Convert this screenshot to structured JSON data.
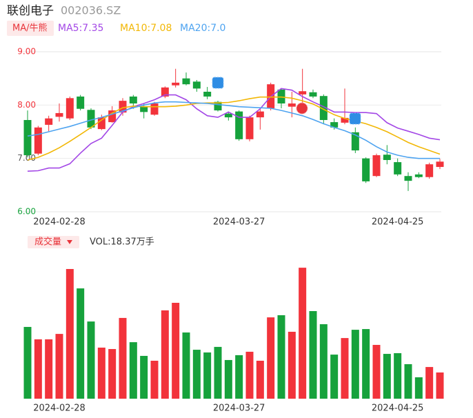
{
  "header": {
    "title": "联创电子",
    "code": "002036.SZ"
  },
  "chart_data": [
    {
      "type": "candlestick",
      "indicator_label": "MA/牛熊",
      "x": [
        null,
        null,
        null,
        "2024-02-28",
        null,
        null,
        null,
        null,
        null,
        null,
        null,
        null,
        null,
        null,
        null,
        null,
        null,
        null,
        null,
        null,
        "2024-03-27",
        null,
        null,
        null,
        null,
        null,
        null,
        null,
        null,
        null,
        null,
        null,
        null,
        null,
        null,
        "2024-04-25",
        null,
        null,
        null,
        null
      ],
      "open": [
        7.72,
        7.09,
        7.63,
        7.78,
        7.75,
        8.16,
        7.91,
        7.55,
        7.68,
        7.86,
        8.16,
        7.97,
        7.82,
        8.16,
        8.37,
        8.5,
        8.44,
        8.25,
        8.06,
        7.84,
        7.88,
        7.36,
        7.77,
        7.94,
        8.29,
        7.97,
        8.2,
        8.24,
        8.17,
        7.68,
        7.67,
        7.49,
        7.0,
        6.67,
        7.07,
        6.93,
        6.67,
        6.7,
        6.65,
        6.84
      ],
      "high": [
        7.9,
        7.61,
        7.8,
        8.03,
        8.16,
        8.19,
        7.94,
        7.82,
        7.98,
        8.13,
        8.19,
        8.03,
        8.06,
        8.35,
        8.68,
        8.61,
        8.47,
        8.34,
        8.08,
        7.88,
        7.9,
        7.8,
        7.93,
        8.42,
        8.31,
        8.25,
        8.68,
        8.29,
        8.2,
        7.75,
        8.31,
        7.58,
        7.02,
        7.09,
        7.25,
        7.0,
        6.74,
        6.74,
        6.92,
        6.99
      ],
      "low": [
        7.02,
        7.06,
        7.51,
        7.69,
        7.72,
        7.9,
        7.55,
        7.53,
        7.67,
        7.8,
        7.93,
        7.75,
        7.8,
        8.13,
        8.33,
        8.37,
        8.25,
        8.11,
        7.88,
        7.71,
        7.33,
        7.32,
        7.54,
        7.9,
        7.94,
        7.77,
        7.9,
        8.13,
        7.64,
        7.54,
        7.64,
        7.1,
        6.54,
        6.65,
        6.89,
        6.67,
        6.39,
        6.63,
        6.62,
        6.8
      ],
      "close": [
        7.06,
        7.58,
        7.75,
        7.85,
        8.13,
        7.93,
        7.58,
        7.77,
        7.9,
        8.08,
        8.03,
        7.87,
        8.03,
        8.33,
        8.42,
        8.39,
        8.31,
        8.16,
        7.9,
        7.77,
        7.36,
        7.77,
        7.88,
        8.39,
        8.03,
        8.03,
        8.26,
        8.16,
        7.72,
        7.58,
        7.76,
        7.15,
        6.57,
        7.06,
        6.97,
        6.7,
        6.58,
        6.65,
        6.89,
        6.94
      ],
      "up_color": "#f2333b",
      "down_color": "#16a23c",
      "ylim": [
        6,
        9
      ],
      "yticks": [
        {
          "value": 6,
          "label": "6.00",
          "color": "#16a23c"
        },
        {
          "value": 7,
          "label": "7.00",
          "color": "#555555"
        },
        {
          "value": 8,
          "label": "8.00",
          "color": "#f2333b"
        },
        {
          "value": 9,
          "label": "9.00",
          "color": "#f2333b"
        }
      ],
      "grid": true,
      "series": [
        {
          "name": "MA5:7.35",
          "color": "#a347e6",
          "values": [
            6.76,
            6.77,
            6.82,
            6.82,
            6.9,
            7.1,
            7.28,
            7.38,
            7.62,
            7.87,
            7.97,
            8.03,
            8.1,
            8.19,
            8.19,
            8.1,
            7.93,
            7.8,
            7.77,
            7.87,
            7.77,
            7.77,
            7.93,
            8.16,
            8.31,
            8.28,
            8.16,
            8.06,
            7.97,
            7.87,
            7.87,
            7.86,
            7.86,
            7.84,
            7.67,
            7.57,
            7.51,
            7.45,
            7.38,
            7.35
          ]
        },
        {
          "name": "MA10:7.08",
          "color": "#f2b705",
          "values": [
            6.97,
            7.02,
            7.1,
            7.2,
            7.32,
            7.45,
            7.58,
            7.72,
            7.85,
            7.95,
            7.98,
            7.97,
            7.97,
            7.97,
            7.98,
            8.0,
            8.03,
            8.04,
            8.04,
            8.05,
            8.08,
            8.12,
            8.15,
            8.15,
            8.15,
            8.13,
            8.08,
            8.02,
            7.92,
            7.82,
            7.75,
            7.7,
            7.65,
            7.58,
            7.5,
            7.4,
            7.3,
            7.22,
            7.15,
            7.08
          ]
        },
        {
          "name": "MA20:7.0",
          "color": "#4da3f0",
          "values": [
            7.42,
            7.45,
            7.5,
            7.55,
            7.6,
            7.66,
            7.72,
            7.77,
            7.83,
            7.89,
            7.95,
            8.0,
            8.04,
            8.06,
            8.06,
            8.05,
            8.04,
            8.03,
            8.01,
            7.99,
            7.97,
            7.96,
            7.95,
            7.94,
            7.9,
            7.85,
            7.8,
            7.73,
            7.65,
            7.58,
            7.52,
            7.44,
            7.34,
            7.22,
            7.12,
            7.06,
            7.02,
            7.0,
            7.0,
            7.0
          ]
        }
      ]
    },
    {
      "type": "bar",
      "indicator_label": "成交量",
      "title": "VOL:18.37万手",
      "x": [
        null,
        null,
        null,
        "2024-02-28",
        null,
        null,
        null,
        null,
        null,
        null,
        null,
        null,
        null,
        null,
        null,
        null,
        null,
        null,
        null,
        null,
        "2024-03-27",
        null,
        null,
        null,
        null,
        null,
        null,
        null,
        null,
        null,
        null,
        null,
        null,
        null,
        null,
        "2024-04-25",
        null,
        null,
        null,
        null
      ],
      "values": [
        50.3,
        41.6,
        41.6,
        45.4,
        90.9,
        77.3,
        54.1,
        35.8,
        34.8,
        56.6,
        39.6,
        30.0,
        26.6,
        61.9,
        67.2,
        46.4,
        34.3,
        32.4,
        36.3,
        27.1,
        30.5,
        32.9,
        26.6,
        57.0,
        58.5,
        46.9,
        91.8,
        61.4,
        52.2,
        30.9,
        42.5,
        48.3,
        48.8,
        37.7,
        31.4,
        31.9,
        24.2,
        15.0,
        22.2,
        18.37
      ],
      "ylim": [
        0,
        95
      ]
    }
  ]
}
